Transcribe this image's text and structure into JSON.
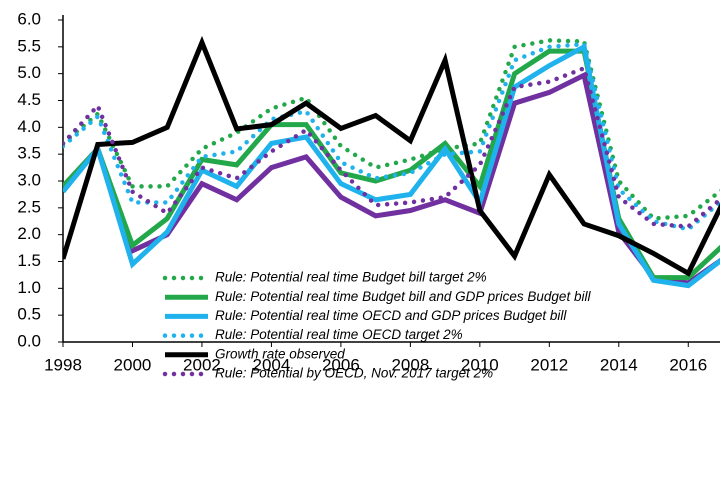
{
  "chart_data": {
    "type": "line",
    "x": [
      1998,
      1999,
      2000,
      2001,
      2002,
      2003,
      2004,
      2005,
      2006,
      2007,
      2008,
      2009,
      2010,
      2011,
      2012,
      2013,
      2014,
      2015,
      2016,
      2017
    ],
    "xlim": [
      1998,
      2017
    ],
    "xticks": [
      1998,
      2000,
      2002,
      2004,
      2006,
      2008,
      2010,
      2012,
      2014,
      2016
    ],
    "ylim": [
      0,
      6
    ],
    "yticks": [
      {
        "value": 0,
        "label": "0.0"
      },
      0.5,
      {
        "value": 1,
        "label": "1.0"
      },
      1.5,
      {
        "value": 2,
        "label": "2.0"
      },
      2.5,
      {
        "value": 3,
        "label": "3.0"
      },
      3.5,
      {
        "value": 4,
        "label": "4.0"
      },
      4.5,
      {
        "value": 5,
        "label": "5.0"
      },
      5.5,
      {
        "value": 6,
        "label": "6.0"
      }
    ],
    "grid": false,
    "legend": "center",
    "series": [
      {
        "color": "#7030a0",
        "style": "solid",
        "values": [
          2.9,
          3.6,
          1.7,
          2.0,
          2.95,
          2.65,
          3.25,
          3.45,
          2.7,
          2.35,
          2.45,
          2.65,
          2.4,
          4.45,
          4.65,
          4.97,
          2.05,
          1.2,
          1.1,
          1.55
        ]
      },
      {
        "name": "Rule: Potential real time Budget bill target 2%",
        "color": "#22a84a",
        "style": "dotted",
        "values": [
          3.7,
          4.25,
          2.9,
          2.9,
          3.6,
          3.9,
          4.35,
          4.55,
          3.65,
          3.25,
          3.4,
          3.6,
          3.7,
          5.5,
          5.62,
          5.6,
          3.0,
          2.3,
          2.35,
          2.85
        ]
      },
      {
        "name": "Rule: Potential real time Budget bill and GDP prices Budget bill",
        "color": "#22a84a",
        "style": "solid",
        "values": [
          2.9,
          3.6,
          1.8,
          2.3,
          3.4,
          3.3,
          4.05,
          4.05,
          3.15,
          3.0,
          3.2,
          3.7,
          2.9,
          5.0,
          5.42,
          5.42,
          2.3,
          1.2,
          1.2,
          1.8
        ]
      },
      {
        "name": "Rule: Potential real time OECD and GDP prices Budget bill",
        "color": "#1fb2ec",
        "style": "solid",
        "values": [
          2.8,
          3.6,
          1.45,
          2.05,
          3.2,
          2.9,
          3.7,
          3.82,
          2.95,
          2.65,
          2.75,
          3.6,
          2.6,
          4.75,
          5.15,
          5.5,
          2.2,
          1.15,
          1.05,
          1.55
        ]
      },
      {
        "name": "Rule: Potential real time OECD target 2%",
        "color": "#1fb2ec",
        "style": "dotted",
        "values": [
          3.65,
          4.2,
          2.6,
          2.6,
          3.45,
          3.55,
          4.15,
          4.3,
          3.35,
          3.05,
          3.15,
          3.5,
          3.55,
          5.25,
          5.5,
          5.55,
          2.85,
          2.25,
          2.1,
          2.65
        ]
      },
      {
        "name": "Growth rate observed",
        "color": "#000000",
        "style": "solid",
        "values": [
          1.55,
          3.68,
          3.72,
          4.0,
          5.58,
          3.97,
          4.05,
          4.45,
          3.98,
          4.22,
          3.75,
          5.25,
          2.45,
          1.6,
          3.12,
          2.2,
          1.98,
          1.65,
          1.28,
          2.6
        ]
      },
      {
        "name": "Rule: Potential by OECD, Nov. 2017 target 2%",
        "color": "#7030a0",
        "style": "dotted",
        "values": [
          3.7,
          4.4,
          2.8,
          2.4,
          3.25,
          3.05,
          3.55,
          3.95,
          3.2,
          2.55,
          2.6,
          2.7,
          3.3,
          4.75,
          4.85,
          5.1,
          2.7,
          2.2,
          2.15,
          2.7
        ]
      }
    ]
  }
}
